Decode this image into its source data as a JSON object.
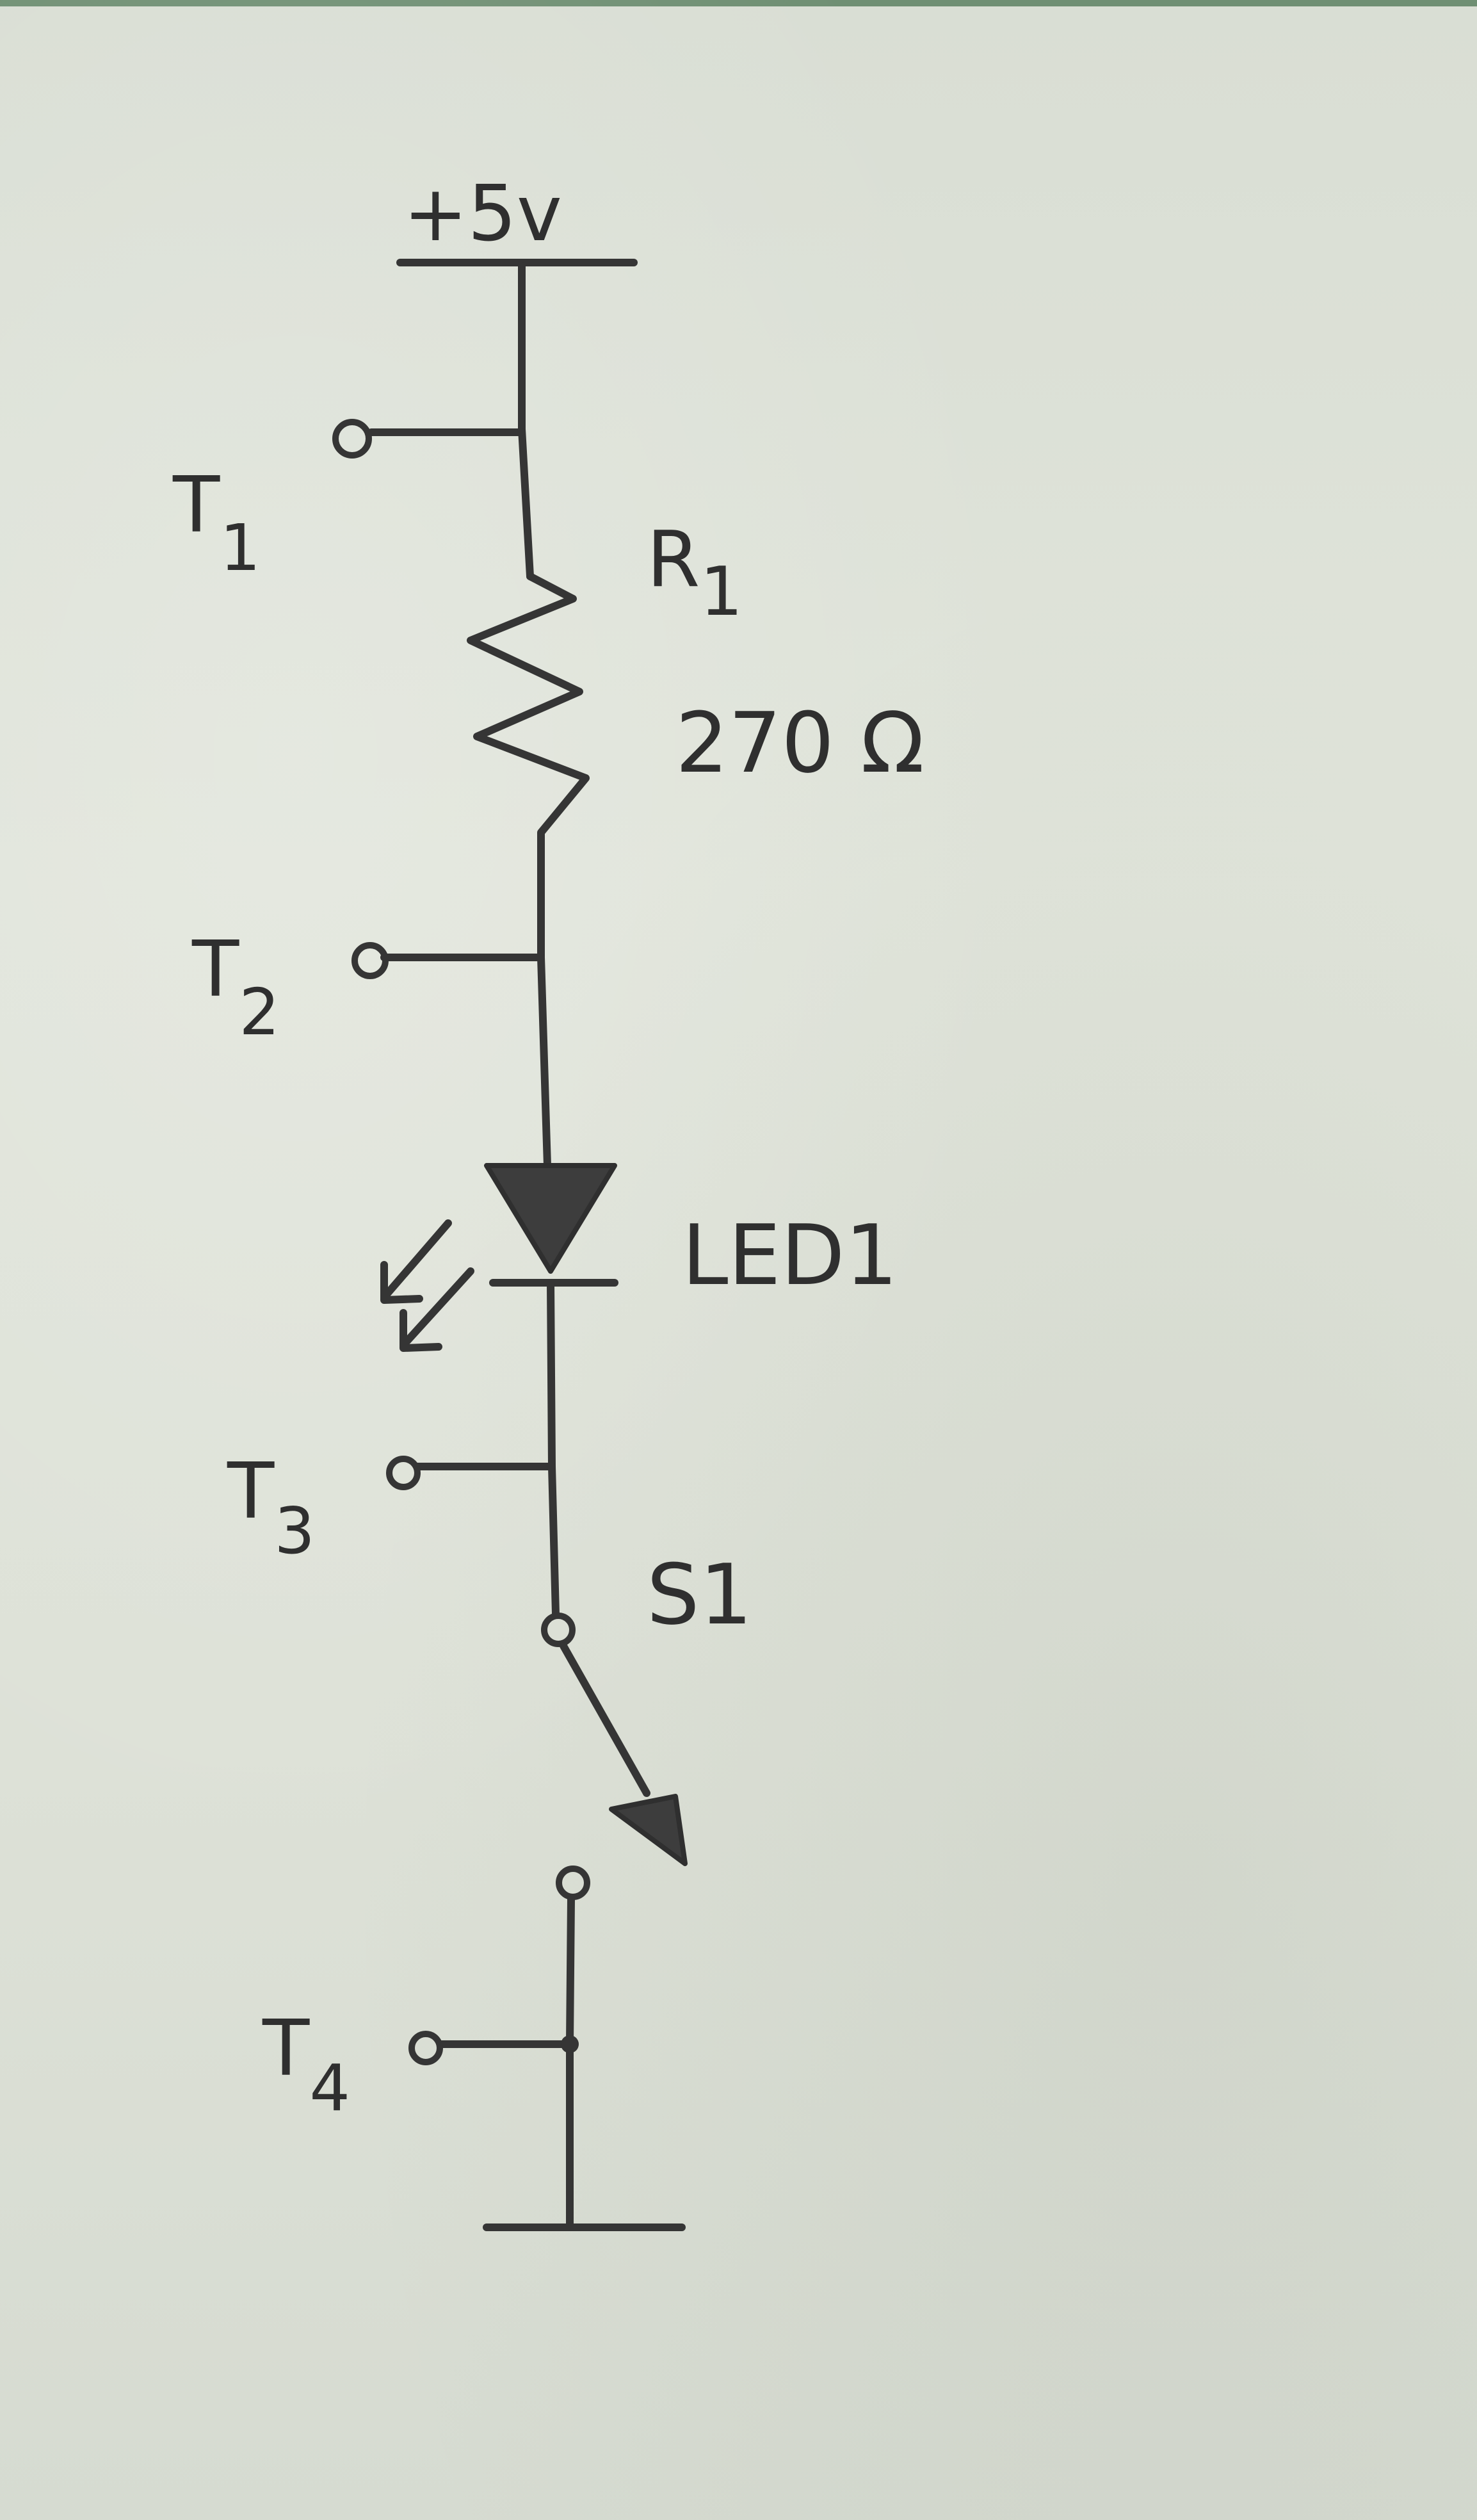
{
  "schematic": {
    "supply_label": "+5v",
    "labels": {
      "t1": "T",
      "t1_sub": "1",
      "t2": "T",
      "t2_sub": "2",
      "t3": "T",
      "t3_sub": "3",
      "t4": "T",
      "t4_sub": "4",
      "r1": "R",
      "r1_sub": "1",
      "r1_value": "270 Ω",
      "led": "LED1",
      "switch": "S1"
    }
  }
}
